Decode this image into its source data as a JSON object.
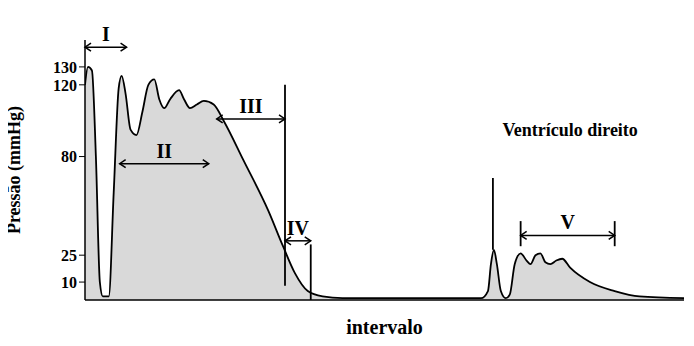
{
  "chart_data": {
    "type": "area",
    "y_label": "Pressão (mmHg)",
    "x_label": "intervalo",
    "color": "#d9d9d9",
    "xlim": [
      0,
      605
    ],
    "ylim": [
      0,
      145
    ],
    "yticks": [
      10,
      25,
      80,
      120,
      130
    ],
    "tick_labels": "y",
    "grid": false,
    "x": [
      0,
      3,
      7,
      11,
      15,
      18,
      24,
      29,
      34,
      37,
      41,
      46,
      52,
      58,
      64,
      70,
      75,
      80,
      86,
      95,
      100,
      106,
      113,
      120,
      130,
      140,
      160,
      185,
      200,
      212,
      225,
      240,
      260,
      400,
      407,
      410,
      413,
      416,
      420,
      425,
      429,
      434,
      440,
      446,
      450,
      455,
      460,
      465,
      470,
      476,
      482,
      490,
      510,
      535,
      560,
      605
    ],
    "values": [
      120,
      130,
      128,
      80,
      10,
      2,
      2,
      60,
      118,
      125,
      115,
      95,
      92,
      105,
      120,
      123,
      112,
      107,
      112,
      117,
      112,
      107,
      109,
      111,
      109,
      100,
      78,
      50,
      30,
      15,
      5,
      2,
      1,
      1,
      5,
      20,
      28,
      20,
      5,
      1,
      3,
      20,
      26,
      22,
      20,
      25,
      26,
      21,
      20,
      22,
      23,
      18,
      10,
      5,
      2,
      1
    ],
    "annotations": [
      {
        "text": "I",
        "x": [
          0,
          42
        ],
        "y": 141
      },
      {
        "text": "II",
        "x": [
          35,
          125
        ],
        "y": 76
      },
      {
        "text": "III",
        "x": [
          133,
          202
        ],
        "y": 101
      },
      {
        "text": "IV",
        "x": [
          202,
          228
        ],
        "y": 33
      },
      {
        "text": "V",
        "x": [
          440,
          535
        ],
        "y": 36
      },
      {
        "text": "Ventrículo direito",
        "x": [
          490,
          490
        ],
        "y": 95
      }
    ],
    "markers": [
      {
        "x": 202,
        "y": [
          8,
          120
        ]
      },
      {
        "x": 228,
        "y": [
          0,
          31
        ]
      },
      {
        "x": 412,
        "y": [
          28,
          68
        ]
      },
      {
        "x": 440,
        "y": [
          30,
          44
        ]
      },
      {
        "x": 535,
        "y": [
          30,
          44
        ]
      }
    ]
  }
}
